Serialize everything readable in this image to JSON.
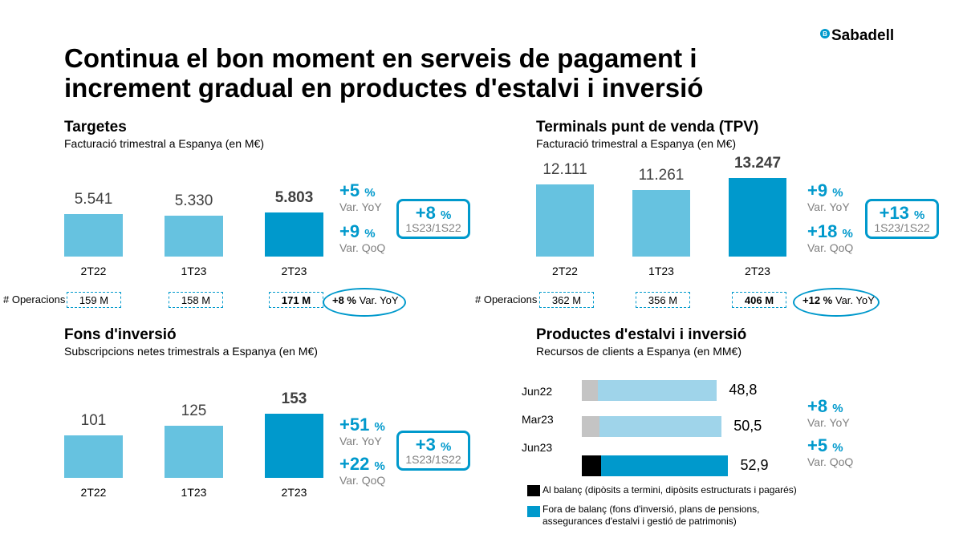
{
  "title_line1": "Continua el bon moment en serveis de pagament i",
  "title_line2": "increment gradual en productes d'estalvi i inversió",
  "logo": {
    "text": "Sabadell",
    "mark": "B"
  },
  "colors": {
    "light": "#66c2e0",
    "dark": "#0099cc",
    "gray": "#c4c4c4",
    "black": "#000000"
  },
  "operacions_label": "# Operacions",
  "chart_data": [
    {
      "type": "bar",
      "title": "Targetes",
      "subtitle": "Facturació trimestral a Espanya (en M€)",
      "categories": [
        "2T22",
        "1T23",
        "2T23"
      ],
      "values": [
        5541,
        5330,
        5803
      ],
      "value_labels": [
        "5.541",
        "5.330",
        "5.803"
      ],
      "kpi": [
        {
          "value": "+5",
          "unit": "%",
          "label": "Var. YoY"
        },
        {
          "value": "+9",
          "unit": "%",
          "label": "Var. QoQ"
        }
      ],
      "box": {
        "value": "+8",
        "unit": "%",
        "label": "1S23/1S22"
      },
      "operacions": [
        "159 M",
        "158 M",
        "171 M"
      ],
      "operacions_var": {
        "value": "+8 %",
        "label": "Var. YoY"
      }
    },
    {
      "type": "bar",
      "title": "Terminals punt de venda (TPV)",
      "subtitle": "Facturació trimestral a Espanya (en M€)",
      "categories": [
        "2T22",
        "1T23",
        "2T23"
      ],
      "values": [
        12111,
        11261,
        13247
      ],
      "value_labels": [
        "12.111",
        "11.261",
        "13.247"
      ],
      "kpi": [
        {
          "value": "+9",
          "unit": "%",
          "label": "Var. YoY"
        },
        {
          "value": "+18",
          "unit": "%",
          "label": "Var. QoQ"
        }
      ],
      "box": {
        "value": "+13",
        "unit": "%",
        "label": "1S23/1S22"
      },
      "operacions": [
        "362 M",
        "356 M",
        "406 M"
      ],
      "operacions_var": {
        "value": "+12 %",
        "label": "Var. YoY"
      }
    },
    {
      "type": "bar",
      "title": "Fons d'inversió",
      "subtitle": "Subscripcions netes trimestrals a Espanya (en M€)",
      "categories": [
        "2T22",
        "1T23",
        "2T23"
      ],
      "values": [
        101,
        125,
        153
      ],
      "value_labels": [
        "101",
        "125",
        "153"
      ],
      "kpi": [
        {
          "value": "+51",
          "unit": "%",
          "label": "Var. YoY"
        },
        {
          "value": "+22",
          "unit": "%",
          "label": "Var. QoQ"
        }
      ],
      "box": {
        "value": "+3",
        "unit": "%",
        "label": "1S23/1S22"
      }
    },
    {
      "type": "bar",
      "orientation": "horizontal",
      "stacked": true,
      "title": "Productes d'estalvi i inversió",
      "subtitle": "Recursos de clients a Espanya (en MM€)",
      "categories": [
        "Jun22",
        "Mar23",
        "Jun23"
      ],
      "totals": [
        48.8,
        50.5,
        52.9
      ],
      "total_labels": [
        "48,8",
        "50,5",
        "52,9"
      ],
      "series": [
        {
          "name": "Al balanç (dipòsits a termini, dipòsits estructurats i pagarés)",
          "values": [
            5.7,
            6.3,
            7.1
          ]
        },
        {
          "name": "Fora de balanç (fons d'inversió, plans de pensions, assegurances d'estalvi i gestió de patrimonis)",
          "values": [
            43.1,
            44.2,
            45.8
          ]
        }
      ],
      "legend_line1": "Al balanç (dipòsits a termini, dipòsits estructurats i pagarés)",
      "legend_line2a": "Fora de balanç (fons d'inversió, plans de pensions,",
      "legend_line2b": "assegurances d'estalvi i gestió de patrimonis)",
      "kpi": [
        {
          "value": "+8",
          "unit": "%",
          "label": "Var. YoY"
        },
        {
          "value": "+5",
          "unit": "%",
          "label": "Var. QoQ"
        }
      ]
    }
  ]
}
